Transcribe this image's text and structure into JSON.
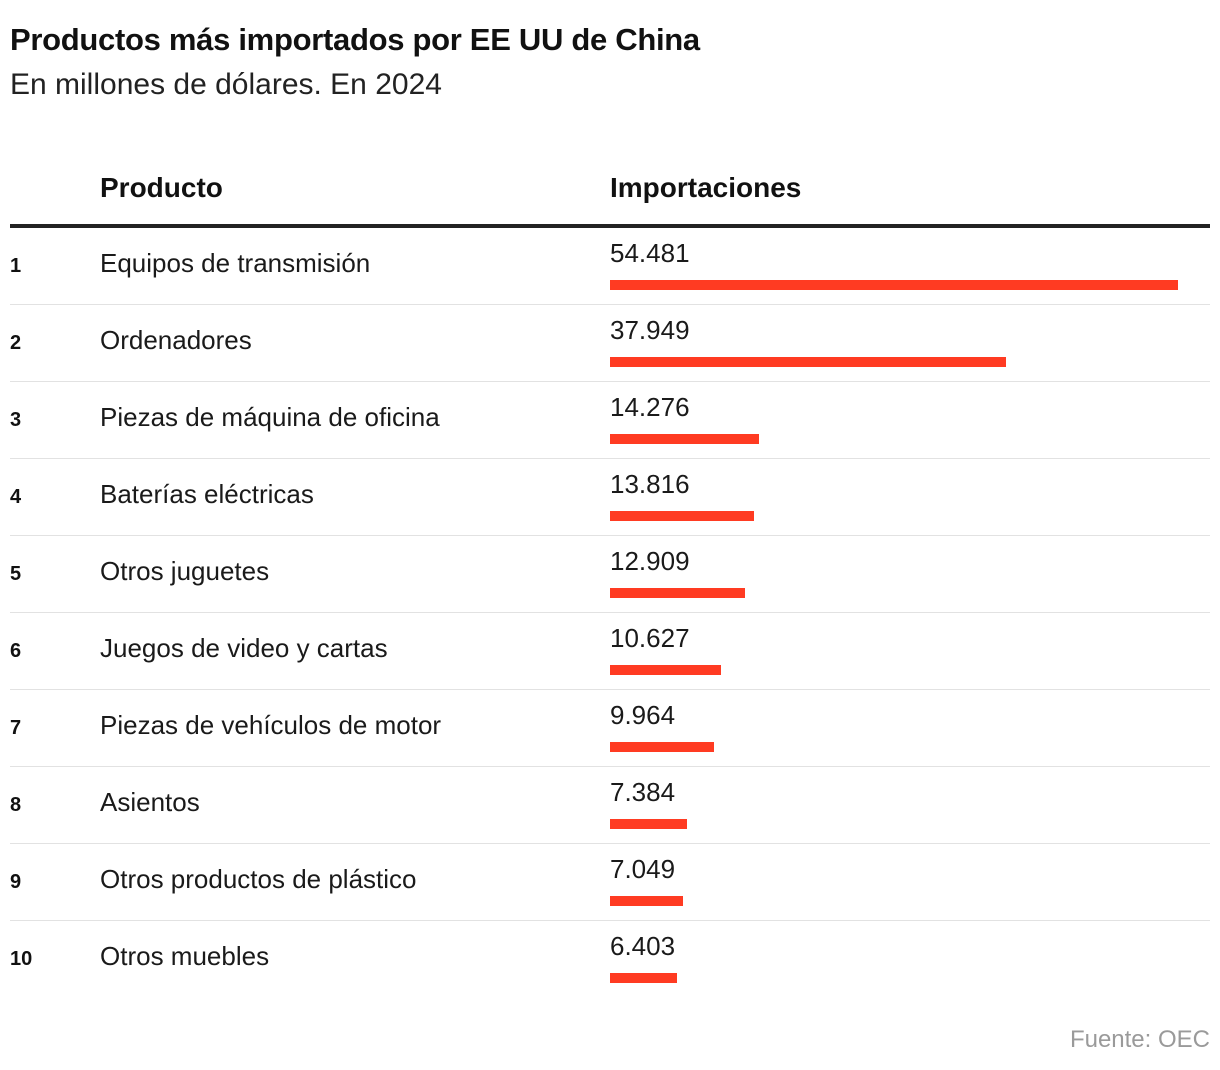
{
  "chart_data": {
    "type": "bar",
    "title": "Productos más importados por EE UU de China",
    "subtitle": "En millones de dólares. En 2024",
    "columns": {
      "product": "Producto",
      "imports": "Importaciones"
    },
    "categories": [
      "Equipos de transmisión",
      "Ordenadores",
      "Piezas de máquina de oficina",
      "Baterías eléctricas",
      "Otros juguetes",
      "Juegos de video y cartas",
      "Piezas de vehículos de motor",
      "Asientos",
      "Otros productos de plástico",
      "Otros muebles"
    ],
    "ranks": [
      "1",
      "2",
      "3",
      "4",
      "5",
      "6",
      "7",
      "8",
      "9",
      "10"
    ],
    "values": [
      54481,
      37949,
      14276,
      13816,
      12909,
      10627,
      9964,
      7384,
      7049,
      6403
    ],
    "value_labels": [
      "54.481",
      "37.949",
      "14.276",
      "13.816",
      "12.909",
      "10.627",
      "9.964",
      "7.384",
      "7.049",
      "6.403"
    ],
    "xlim": [
      0,
      54481
    ],
    "source": "Fuente: OEC"
  },
  "colors": {
    "bar": "#ff3b22",
    "rule": "#222222",
    "source": "#9a9a9a"
  }
}
